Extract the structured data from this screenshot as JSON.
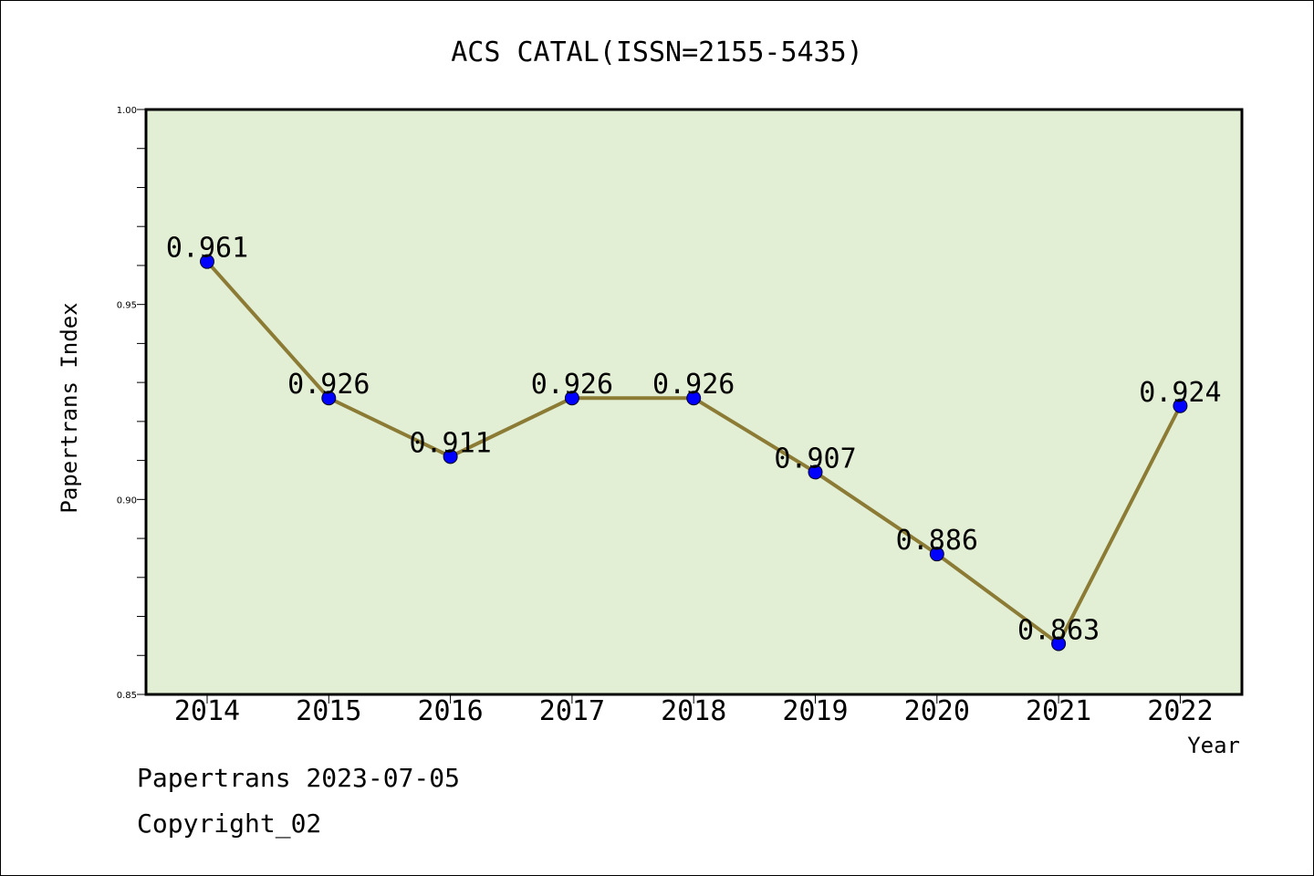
{
  "chart_data": {
    "type": "line",
    "title": "ACS CATAL(ISSN=2155-5435)",
    "xlabel": "Year",
    "ylabel": "Papertrans Index",
    "categories": [
      "2014",
      "2015",
      "2016",
      "2017",
      "2018",
      "2019",
      "2020",
      "2021",
      "2022"
    ],
    "values": [
      0.961,
      0.926,
      0.911,
      0.926,
      0.926,
      0.907,
      0.886,
      0.863,
      0.924
    ],
    "data_labels": [
      "0.961",
      "0.926",
      "0.911",
      "0.926",
      "0.926",
      "0.907",
      "0.886",
      "0.863",
      "0.924"
    ],
    "ylim": [
      0.85,
      1.0
    ],
    "yticks": [
      "0.85",
      "0.90",
      "0.95",
      "1.00"
    ],
    "grid": false,
    "colors": {
      "plot_background": "#e2efd5",
      "line": "#8b7b35",
      "marker": "#0000ff"
    }
  },
  "footer": {
    "line1": "Papertrans 2023-07-05",
    "line2": "Copyright_02"
  }
}
